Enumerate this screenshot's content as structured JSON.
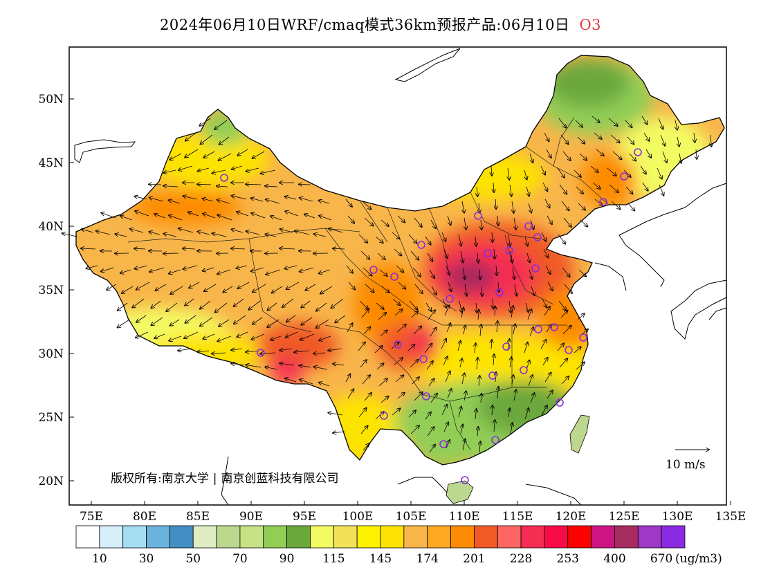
{
  "title": {
    "text": "2024年06月10日WRF/cmaq模式36km预报产品:06月10日",
    "species": "O3"
  },
  "copyright": {
    "prefix": "版权所有:",
    "org1": "南京大学",
    "org2": "南京创蓝科技有限公司"
  },
  "wind_scale": {
    "label": "10 m/s"
  },
  "axes": {
    "lon_labels": [
      "75E",
      "80E",
      "85E",
      "90E",
      "95E",
      "100E",
      "105E",
      "110E",
      "115E",
      "120E",
      "125E",
      "130E",
      "135E"
    ],
    "lat_labels": [
      "20N",
      "25N",
      "30N",
      "35N",
      "40N",
      "45N",
      "50N"
    ]
  },
  "colorbar": {
    "colors": [
      "#ffffff",
      "#d6effa",
      "#a6dcf2",
      "#6cb2de",
      "#438fc3",
      "#e0ecc2",
      "#bcd78e",
      "#c7e285",
      "#92ce56",
      "#6ca83c",
      "#f3fb63",
      "#f1e258",
      "#fdf200",
      "#fde304",
      "#f8b54a",
      "#fea722",
      "#fd8b06",
      "#f05a27",
      "#fd6662",
      "#f52d52",
      "#f70c47",
      "#fd0000",
      "#cc1582",
      "#a62c5f",
      "#9f38c6",
      "#8a2be2"
    ],
    "labels": [
      "10",
      "30",
      "50",
      "70",
      "90",
      "115",
      "145",
      "174",
      "201",
      "228",
      "253",
      "400",
      "670"
    ],
    "unit": "(ug/m3)"
  },
  "stations_icon": "circle-marker-icon"
}
